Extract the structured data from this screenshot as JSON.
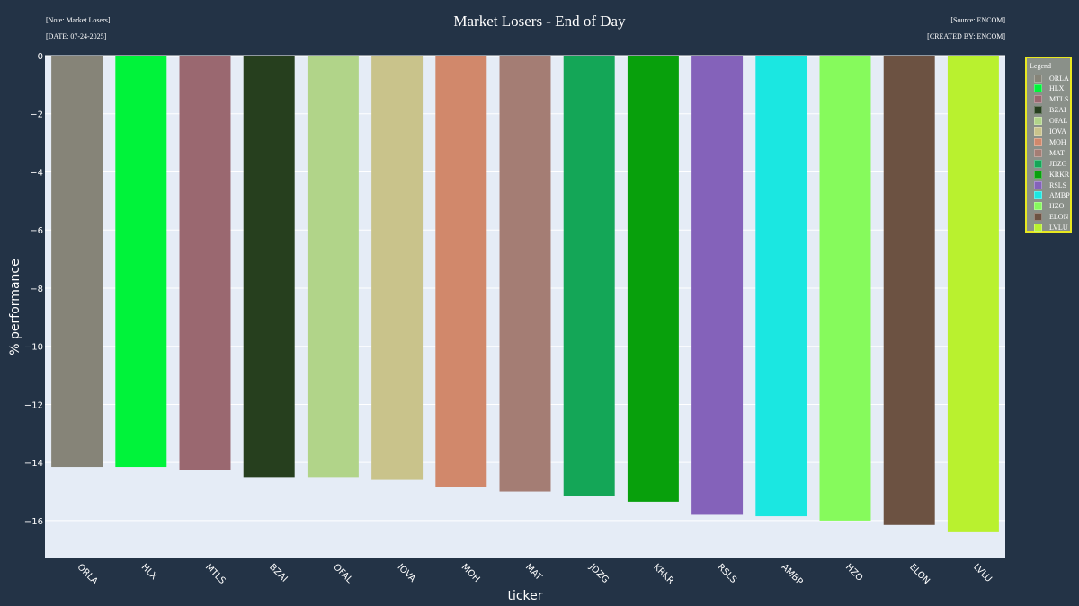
{
  "header": {
    "title": "Market Losers - End of Day",
    "note": "[Note: Market Losers]",
    "date": "[DATE: 07-24-2025]",
    "source": "[Source: ENCOM]",
    "created_by": "[CREATED BY: ENCOM]"
  },
  "legend": {
    "title": "Legend"
  },
  "chart_data": {
    "type": "bar",
    "title": "Market Losers - End of Day",
    "xlabel": "ticker",
    "ylabel": "% performance",
    "ylim": [
      -17.3,
      0
    ],
    "yticks": [
      0,
      -2,
      -4,
      -6,
      -8,
      -10,
      -12,
      -14,
      -16
    ],
    "grid": true,
    "legend_position": "right",
    "categories": [
      "ORLA",
      "HLX",
      "MTLS",
      "BZAI",
      "OFAL",
      "IOVA",
      "MOH",
      "MAT",
      "JDZG",
      "KRKR",
      "RSLS",
      "AMBP",
      "HZO",
      "ELON",
      "LVLU"
    ],
    "values": [
      -14.15,
      -14.15,
      -14.25,
      -14.5,
      -14.5,
      -14.6,
      -14.85,
      -15.0,
      -15.15,
      -15.35,
      -15.8,
      -15.85,
      -16.0,
      -16.15,
      -16.4
    ],
    "colors": [
      "#868478",
      "#00f33a",
      "#9a6870",
      "#263f1e",
      "#b1d489",
      "#c9c38b",
      "#d1886b",
      "#a47d74",
      "#14a657",
      "#08a00c",
      "#8462ba",
      "#1be7e1",
      "#86fa5c",
      "#6c5242",
      "#b9f12f"
    ]
  }
}
